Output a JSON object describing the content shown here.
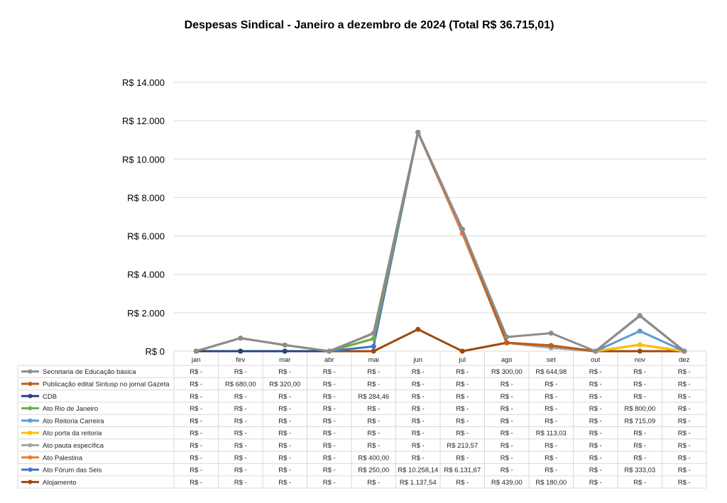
{
  "chart_data": {
    "type": "line",
    "stacked": true,
    "title": "Despesas Sindical - Janeiro a dezembro de 2024 (Total  R$ 36.715,01)",
    "categories": [
      "jan",
      "fev",
      "mar",
      "abr",
      "mai",
      "jun",
      "jul",
      "ago",
      "set",
      "out",
      "nov",
      "dez"
    ],
    "ylim": [
      0,
      14000
    ],
    "yticks": [
      0,
      2000,
      4000,
      6000,
      8000,
      10000,
      12000,
      14000
    ],
    "ytick_labels": [
      "R$ 0",
      "R$ 2.000",
      "R$ 4.000",
      "R$ 6.000",
      "R$ 8.000",
      "R$ 10.000",
      "R$ 12.000",
      "R$ 14.000"
    ],
    "grid": true,
    "legend": "data-table-bottom",
    "series": [
      {
        "name": "Secretaria de Educação básica",
        "color": "#8c8c8c",
        "values": [
          0,
          0,
          0,
          0,
          0,
          0,
          0,
          300,
          644.98,
          0,
          0,
          0
        ]
      },
      {
        "name": "Publicação edital Sintusp no jornal Gazeta",
        "color": "#c55a11",
        "values": [
          0,
          680,
          320,
          0,
          0,
          0,
          0,
          0,
          0,
          0,
          0,
          0
        ]
      },
      {
        "name": "CDB",
        "color": "#264478",
        "values": [
          0,
          0,
          0,
          0,
          284.46,
          0,
          0,
          0,
          0,
          0,
          0,
          0
        ]
      },
      {
        "name": "Ato Rio de Janeiro",
        "color": "#70ad47",
        "values": [
          0,
          0,
          0,
          0,
          0,
          0,
          0,
          0,
          0,
          0,
          800,
          0
        ]
      },
      {
        "name": "Ato Reitoria Carreira",
        "color": "#5b9bd5",
        "values": [
          0,
          0,
          0,
          0,
          0,
          0,
          0,
          0,
          0,
          0,
          715.09,
          0
        ]
      },
      {
        "name": "Ato porta da reitoria",
        "color": "#ffc000",
        "values": [
          0,
          0,
          0,
          0,
          0,
          0,
          0,
          0,
          113.03,
          0,
          0,
          0
        ]
      },
      {
        "name": "Ato pauta específica",
        "color": "#a5a5a5",
        "values": [
          0,
          0,
          0,
          0,
          0,
          0,
          213.57,
          0,
          0,
          0,
          0,
          0
        ]
      },
      {
        "name": "Ato Palestina",
        "color": "#ed7d31",
        "values": [
          0,
          0,
          0,
          0,
          400,
          0,
          0,
          0,
          0,
          0,
          0,
          0
        ]
      },
      {
        "name": "Ato Fórum das Seis",
        "color": "#4472c4",
        "values": [
          0,
          0,
          0,
          0,
          250,
          10258.14,
          6131.67,
          0,
          0,
          0,
          333.03,
          0
        ]
      },
      {
        "name": "Alojamento",
        "color": "#9e480e",
        "values": [
          0,
          0,
          0,
          0,
          0,
          1137.54,
          0,
          439,
          180,
          0,
          0,
          0
        ]
      }
    ]
  }
}
